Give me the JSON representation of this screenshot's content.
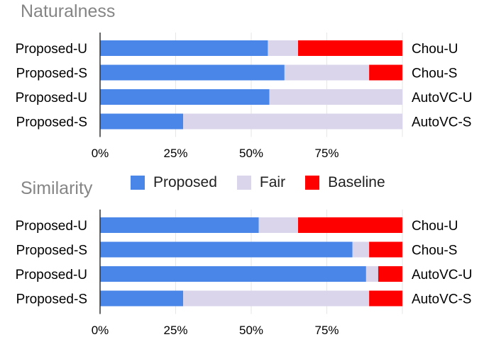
{
  "colors": {
    "proposed": "#4a86e8",
    "fair": "#dad5ea",
    "baseline": "#ff0000"
  },
  "legend": {
    "proposed_label": "Proposed",
    "fair_label": "Fair",
    "baseline_label": "Baseline"
  },
  "chart_data": [
    {
      "type": "bar",
      "orientation": "horizontal",
      "stacked": true,
      "title": "Naturalness",
      "categories": [
        "Proposed-U",
        "Proposed-S",
        "Proposed-U",
        "Proposed-S"
      ],
      "right_labels": [
        "Chou-U",
        "Chou-S",
        "AutoVC-U",
        "AutoVC-S"
      ],
      "series": [
        {
          "name": "Proposed",
          "values": [
            55.5,
            61.0,
            56.0,
            27.5
          ]
        },
        {
          "name": "Fair",
          "values": [
            10.0,
            28.0,
            44.0,
            72.5
          ]
        },
        {
          "name": "Baseline",
          "values": [
            34.5,
            11.0,
            0.0,
            0.0
          ]
        }
      ],
      "xlim": [
        0,
        100
      ],
      "xticks": [
        "0%",
        "25%",
        "50%",
        "75%"
      ]
    },
    {
      "type": "bar",
      "orientation": "horizontal",
      "stacked": true,
      "title": "Similarity",
      "categories": [
        "Proposed-U",
        "Proposed-S",
        "Proposed-U",
        "Proposed-S"
      ],
      "right_labels": [
        "Chou-U",
        "Chou-S",
        "AutoVC-U",
        "AutoVC-S"
      ],
      "series": [
        {
          "name": "Proposed",
          "values": [
            52.5,
            83.5,
            88.0,
            27.5
          ]
        },
        {
          "name": "Fair",
          "values": [
            13.0,
            5.5,
            4.0,
            61.5
          ]
        },
        {
          "name": "Baseline",
          "values": [
            34.5,
            11.0,
            8.0,
            11.0
          ]
        }
      ],
      "xlim": [
        0,
        100
      ],
      "xticks": [
        "0%",
        "25%",
        "50%",
        "75%"
      ]
    }
  ]
}
